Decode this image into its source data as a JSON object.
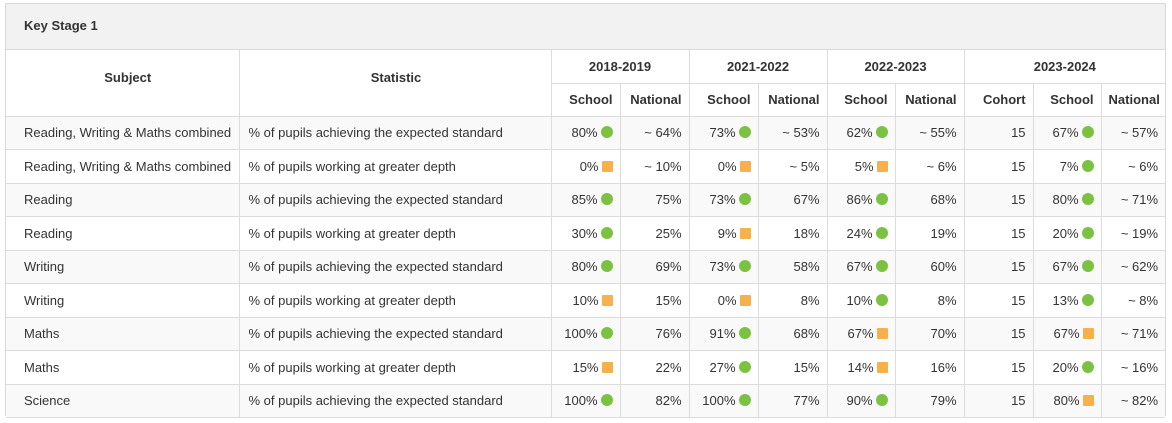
{
  "panel": {
    "title": "Key Stage 1"
  },
  "header": {
    "subject": "Subject",
    "statistic": "Statistic",
    "school": "School",
    "national": "National",
    "cohort": "Cohort",
    "years": [
      "2018-2019",
      "2021-2022",
      "2022-2023",
      "2023-2024"
    ]
  },
  "indicator_colors": {
    "green-circle": "#7cc242",
    "amber-square": "#f6b14d"
  },
  "rows": [
    {
      "subject": "Reading, Writing & Maths combined",
      "statistic": "% of pupils achieving the expected standard",
      "s1": "80%",
      "i1": "circle",
      "n1": "~ 64%",
      "s2": "73%",
      "i2": "circle",
      "n2": "~ 53%",
      "s3": "62%",
      "i3": "circle",
      "n3": "~ 55%",
      "cohort": "15",
      "s4": "67%",
      "i4": "circle",
      "n4": "~ 57%"
    },
    {
      "subject": "Reading, Writing & Maths combined",
      "statistic": "% of pupils working at greater depth",
      "s1": "0%",
      "i1": "square",
      "n1": "~ 10%",
      "s2": "0%",
      "i2": "square",
      "n2": "~ 5%",
      "s3": "5%",
      "i3": "square",
      "n3": "~ 6%",
      "cohort": "15",
      "s4": "7%",
      "i4": "circle",
      "n4": "~ 6%"
    },
    {
      "subject": "Reading",
      "statistic": "% of pupils achieving the expected standard",
      "s1": "85%",
      "i1": "circle",
      "n1": "75%",
      "s2": "73%",
      "i2": "circle",
      "n2": "67%",
      "s3": "86%",
      "i3": "circle",
      "n3": "68%",
      "cohort": "15",
      "s4": "80%",
      "i4": "circle",
      "n4": "~ 71%"
    },
    {
      "subject": "Reading",
      "statistic": "% of pupils working at greater depth",
      "s1": "30%",
      "i1": "circle",
      "n1": "25%",
      "s2": "9%",
      "i2": "square",
      "n2": "18%",
      "s3": "24%",
      "i3": "circle",
      "n3": "19%",
      "cohort": "15",
      "s4": "20%",
      "i4": "circle",
      "n4": "~ 19%"
    },
    {
      "subject": "Writing",
      "statistic": "% of pupils achieving the expected standard",
      "s1": "80%",
      "i1": "circle",
      "n1": "69%",
      "s2": "73%",
      "i2": "circle",
      "n2": "58%",
      "s3": "67%",
      "i3": "circle",
      "n3": "60%",
      "cohort": "15",
      "s4": "67%",
      "i4": "circle",
      "n4": "~ 62%"
    },
    {
      "subject": "Writing",
      "statistic": "% of pupils working at greater depth",
      "s1": "10%",
      "i1": "square",
      "n1": "15%",
      "s2": "0%",
      "i2": "square",
      "n2": "8%",
      "s3": "10%",
      "i3": "circle",
      "n3": "8%",
      "cohort": "15",
      "s4": "13%",
      "i4": "circle",
      "n4": "~ 8%"
    },
    {
      "subject": "Maths",
      "statistic": "% of pupils achieving the expected standard",
      "s1": "100%",
      "i1": "circle",
      "n1": "76%",
      "s2": "91%",
      "i2": "circle",
      "n2": "68%",
      "s3": "67%",
      "i3": "square",
      "n3": "70%",
      "cohort": "15",
      "s4": "67%",
      "i4": "square",
      "n4": "~ 71%"
    },
    {
      "subject": "Maths",
      "statistic": "% of pupils working at greater depth",
      "s1": "15%",
      "i1": "square",
      "n1": "22%",
      "s2": "27%",
      "i2": "circle",
      "n2": "15%",
      "s3": "14%",
      "i3": "square",
      "n3": "16%",
      "cohort": "15",
      "s4": "20%",
      "i4": "circle",
      "n4": "~ 16%"
    },
    {
      "subject": "Science",
      "statistic": "% of pupils achieving the expected standard",
      "s1": "100%",
      "i1": "circle",
      "n1": "82%",
      "s2": "100%",
      "i2": "circle",
      "n2": "77%",
      "s3": "90%",
      "i3": "circle",
      "n3": "79%",
      "cohort": "15",
      "s4": "80%",
      "i4": "square",
      "n4": "~ 82%"
    }
  ]
}
